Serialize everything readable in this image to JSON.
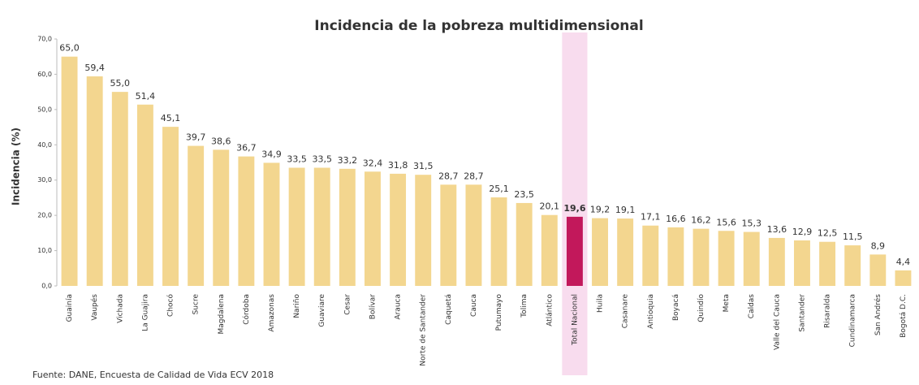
{
  "chart_data": {
    "type": "bar",
    "title": "Incidencia de la pobreza multidimensional",
    "y_label": "Incidencia (%)",
    "source": "Fuente: DANE, Encuesta de Calidad de Vida ECV 2018",
    "categories": [
      "Guainía",
      "Vaupés",
      "Vichada",
      "La Guajira",
      "Chocó",
      "Sucre",
      "Magdalena",
      "Córdoba",
      "Amazonas",
      "Nariño",
      "Guaviare",
      "Cesar",
      "Bolívar",
      "Arauca",
      "Norte de Santander",
      "Caquetá",
      "Cauca",
      "Putumayo",
      "Tolima",
      "Atlántico",
      "Total Nacional",
      "Huila",
      "Casanare",
      "Antioquia",
      "Boyacá",
      "Quindío",
      "Meta",
      "Caldas",
      "Valle del Cauca",
      "Santander",
      "Risaralda",
      "Cundinamarca",
      "San Andrés",
      "Bogotá D.C."
    ],
    "values": [
      65.0,
      59.4,
      55.0,
      51.4,
      45.1,
      39.7,
      38.6,
      36.7,
      34.9,
      33.5,
      33.5,
      33.2,
      32.4,
      31.8,
      31.5,
      28.7,
      28.7,
      25.1,
      23.5,
      20.1,
      19.6,
      19.2,
      19.1,
      17.1,
      16.6,
      16.2,
      15.6,
      15.3,
      13.6,
      12.9,
      12.5,
      11.5,
      8.9,
      4.4
    ],
    "value_labels": [
      "65,0",
      "59,4",
      "55,0",
      "51,4",
      "45,1",
      "39,7",
      "38,6",
      "36,7",
      "34,9",
      "33,5",
      "33,5",
      "33,2",
      "32,4",
      "31,8",
      "31,5",
      "28,7",
      "28,7",
      "25,1",
      "23,5",
      "20,1",
      "19,6",
      "19,2",
      "19,1",
      "17,1",
      "16,6",
      "16,2",
      "15,6",
      "15,3",
      "13,6",
      "12,9",
      "12,5",
      "11,5",
      "8,9",
      "4,4"
    ],
    "color": "#f3d68f",
    "highlight": "Total Nacional",
    "highlight_color": "#c2185b",
    "highlight_band_color": "#f8dcee",
    "ylim": [
      0,
      70
    ],
    "yticks": [
      {
        "value": 0,
        "label": "0,0"
      },
      {
        "value": 10,
        "label": "10,0"
      },
      {
        "value": 20,
        "label": "20,0"
      },
      {
        "value": 30,
        "label": "30,0"
      },
      {
        "value": 40,
        "label": "40,0"
      },
      {
        "value": 50,
        "label": "50,0"
      },
      {
        "value": 60,
        "label": "60,0"
      },
      {
        "value": 70,
        "label": "70,0"
      }
    ]
  }
}
